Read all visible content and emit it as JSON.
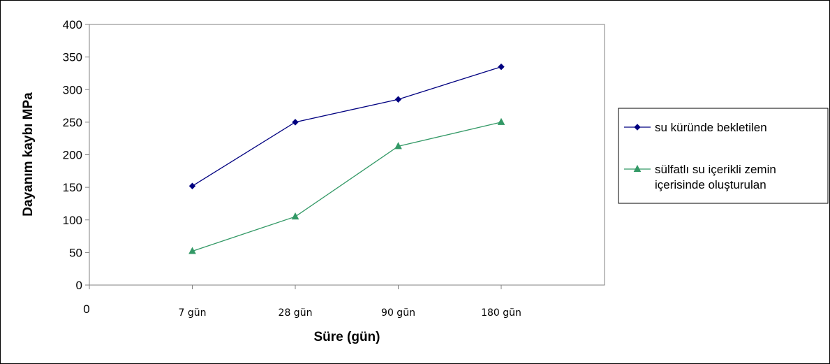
{
  "chart_data": {
    "type": "line",
    "categories": [
      "7 gün",
      "28 gün",
      "90 gün",
      "180 gün"
    ],
    "x_origin_label": "0",
    "xlabel": "Süre (gün)",
    "ylabel": "Dayanım kaybı MPa",
    "ylim": [
      0,
      400
    ],
    "yticks": [
      0,
      50,
      100,
      150,
      200,
      250,
      300,
      350,
      400
    ],
    "grid": false,
    "legend_position": "right",
    "series": [
      {
        "name": "su küründe bekletilen",
        "color": "#000080",
        "marker": "diamond",
        "values": [
          152,
          250,
          285,
          335
        ]
      },
      {
        "name": [
          "sülfatlı su içerikli zemin",
          "içerisinde oluşturulan"
        ],
        "color": "#339966",
        "marker": "triangle",
        "values": [
          52,
          105,
          213,
          250
        ]
      }
    ]
  }
}
